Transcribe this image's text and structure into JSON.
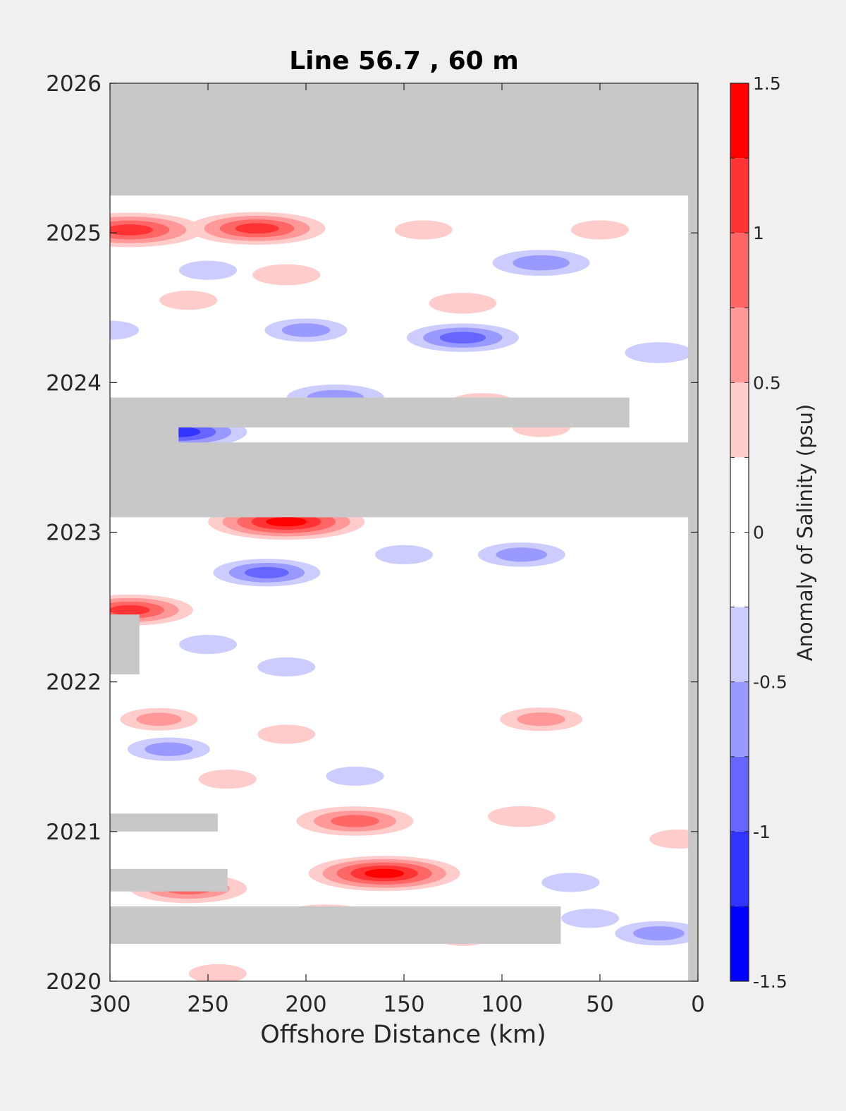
{
  "chart_data": {
    "type": "heatmap",
    "title": "Line 56.7 , 60 m",
    "xlabel": "Offshore Distance (km)",
    "ylabel": "",
    "xlim": [
      300,
      0
    ],
    "ylim": [
      2020,
      2026
    ],
    "xticks": [
      "300",
      "250",
      "200",
      "150",
      "100",
      "50",
      "0"
    ],
    "xtick_values": [
      300,
      250,
      200,
      150,
      100,
      50,
      0
    ],
    "yticks": [
      "2020",
      "2021",
      "2022",
      "2023",
      "2024",
      "2025",
      "2026"
    ],
    "ytick_values": [
      2020,
      2021,
      2022,
      2023,
      2024,
      2025,
      2026
    ],
    "colorbar": {
      "label": "Anomaly of Salinity (psu)",
      "ticks": [
        "-1.5",
        "-1",
        "-0.5",
        "0",
        "0.5",
        "1",
        "1.5"
      ],
      "tick_values": [
        -1.5,
        -1,
        -0.5,
        0,
        0.5,
        1,
        1.5
      ],
      "levels": [
        -1.5,
        -1.25,
        -1,
        -0.75,
        -0.5,
        -0.25,
        0,
        0.25,
        0.5,
        0.75,
        1,
        1.25,
        1.5
      ],
      "colors": [
        "#0000ff",
        "#3333ff",
        "#6666ff",
        "#9999ff",
        "#ccccff",
        "#ffffff",
        "#ffffff",
        "#ffcccc",
        "#ff9999",
        "#ff6666",
        "#ff3333",
        "#ff0000"
      ]
    },
    "missing_color": "#c8c8c8",
    "missing_regions": [
      {
        "x": [
          300,
          0
        ],
        "y": [
          2025.25,
          2026
        ]
      },
      {
        "x": [
          300,
          0
        ],
        "y": [
          2023.1,
          2023.6
        ]
      },
      {
        "x": [
          300,
          35
        ],
        "y": [
          2023.7,
          2023.9
        ]
      },
      {
        "x": [
          300,
          265
        ],
        "y": [
          2023.55,
          2023.9
        ]
      },
      {
        "x": [
          300,
          285
        ],
        "y": [
          2022.05,
          2022.45
        ]
      },
      {
        "x": [
          300,
          245
        ],
        "y": [
          2021.0,
          2021.12
        ]
      },
      {
        "x": [
          300,
          240
        ],
        "y": [
          2020.6,
          2020.75
        ]
      },
      {
        "x": [
          300,
          70
        ],
        "y": [
          2020.25,
          2020.5
        ]
      },
      {
        "x": [
          5,
          0
        ],
        "y": [
          2020,
          2025.25
        ]
      }
    ],
    "anomalies": [
      {
        "x": 290,
        "y": 2025.02,
        "value": 1.2
      },
      {
        "x": 225,
        "y": 2025.03,
        "value": 1.1
      },
      {
        "x": 120,
        "y": 2024.53,
        "value": 0.4
      },
      {
        "x": 210,
        "y": 2024.72,
        "value": 0.4
      },
      {
        "x": 140,
        "y": 2025.02,
        "value": 0.3
      },
      {
        "x": 50,
        "y": 2025.02,
        "value": 0.3
      },
      {
        "x": 260,
        "y": 2024.55,
        "value": 0.3
      },
      {
        "x": 80,
        "y": 2024.8,
        "value": -0.7
      },
      {
        "x": 250,
        "y": 2024.75,
        "value": -0.3
      },
      {
        "x": 120,
        "y": 2024.3,
        "value": -0.85
      },
      {
        "x": 200,
        "y": 2024.35,
        "value": -0.55
      },
      {
        "x": 20,
        "y": 2024.2,
        "value": -0.4
      },
      {
        "x": 300,
        "y": 2024.35,
        "value": -0.3
      },
      {
        "x": 185,
        "y": 2023.9,
        "value": -0.7
      },
      {
        "x": 265,
        "y": 2023.67,
        "value": -1.1
      },
      {
        "x": 110,
        "y": 2023.86,
        "value": 0.4
      },
      {
        "x": 80,
        "y": 2023.7,
        "value": 0.3
      },
      {
        "x": 210,
        "y": 2023.07,
        "value": 1.3
      },
      {
        "x": 90,
        "y": 2022.85,
        "value": -0.6
      },
      {
        "x": 220,
        "y": 2022.73,
        "value": -0.8
      },
      {
        "x": 150,
        "y": 2022.85,
        "value": -0.3
      },
      {
        "x": 290,
        "y": 2022.48,
        "value": 1.0
      },
      {
        "x": 250,
        "y": 2022.25,
        "value": -0.3
      },
      {
        "x": 210,
        "y": 2022.1,
        "value": -0.3
      },
      {
        "x": 80,
        "y": 2021.75,
        "value": 0.55
      },
      {
        "x": 210,
        "y": 2021.65,
        "value": 0.3
      },
      {
        "x": 275,
        "y": 2021.75,
        "value": 0.5
      },
      {
        "x": 270,
        "y": 2021.55,
        "value": -0.55
      },
      {
        "x": 240,
        "y": 2021.35,
        "value": 0.3
      },
      {
        "x": 175,
        "y": 2021.37,
        "value": -0.3
      },
      {
        "x": 175,
        "y": 2021.07,
        "value": 0.9
      },
      {
        "x": 90,
        "y": 2021.1,
        "value": 0.4
      },
      {
        "x": 10,
        "y": 2020.95,
        "value": 0.3
      },
      {
        "x": 160,
        "y": 2020.72,
        "value": 1.25
      },
      {
        "x": 260,
        "y": 2020.62,
        "value": 0.9
      },
      {
        "x": 190,
        "y": 2020.42,
        "value": 0.8
      },
      {
        "x": 65,
        "y": 2020.66,
        "value": -0.3
      },
      {
        "x": 20,
        "y": 2020.32,
        "value": -0.6
      },
      {
        "x": 55,
        "y": 2020.42,
        "value": -0.3
      },
      {
        "x": 120,
        "y": 2020.3,
        "value": 0.3
      },
      {
        "x": 245,
        "y": 2020.05,
        "value": 0.3
      }
    ],
    "grid": false,
    "legend": "colorbar-right"
  }
}
